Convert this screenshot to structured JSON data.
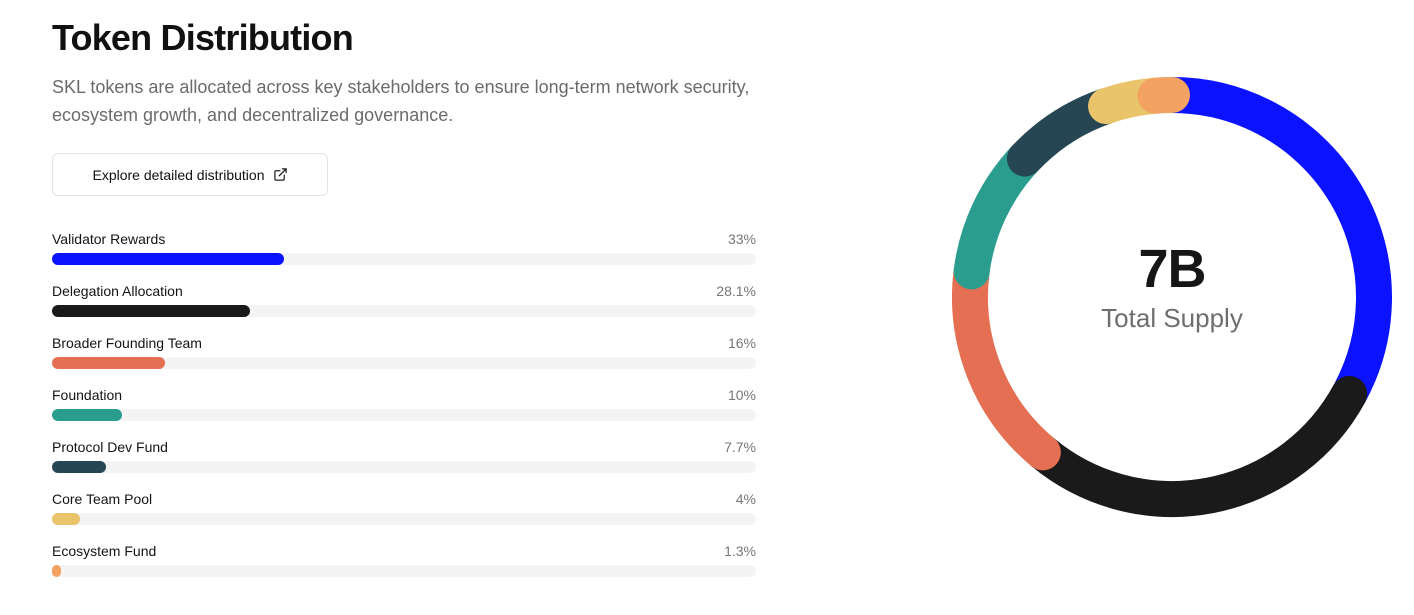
{
  "header": {
    "title": "Token Distribution",
    "description": "SKL tokens are allocated across key stakeholders to ensure long-term network security, ecosystem growth, and decentralized governance."
  },
  "button": {
    "label": "Explore detailed distribution",
    "icon": "external-link-icon"
  },
  "center": {
    "value": "7B",
    "label": "Total Supply"
  },
  "chart_data": {
    "type": "pie",
    "subtype": "donut",
    "title": "Token Distribution",
    "center_label": "7B Total Supply",
    "categories": [
      "Validator Rewards",
      "Delegation Allocation",
      "Broader Founding Team",
      "Foundation",
      "Protocol Dev Fund",
      "Core Team Pool",
      "Ecosystem Fund"
    ],
    "values": [
      33,
      28.1,
      16,
      10,
      7.7,
      4,
      1.3
    ],
    "labels": [
      "33%",
      "28.1%",
      "16%",
      "10%",
      "7.7%",
      "4%",
      "1.3%"
    ],
    "colors": [
      "#0A12FF",
      "#1A1A1A",
      "#E56F52",
      "#2A9D8F",
      "#264653",
      "#E9C46A",
      "#F4A261"
    ],
    "unit": "%",
    "legend_position": "left (as progress bars)"
  },
  "track_color": "#F4F4F4"
}
